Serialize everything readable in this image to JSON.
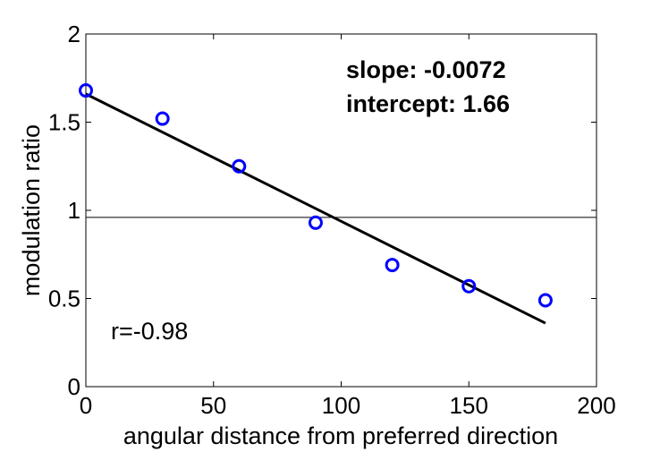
{
  "chart_data": {
    "type": "scatter",
    "title": "",
    "xlabel": "angular distance from preferred direction",
    "ylabel": "modulation ratio",
    "xlim": [
      0,
      200
    ],
    "ylim": [
      0,
      2
    ],
    "xticks": [
      0,
      50,
      100,
      150,
      200
    ],
    "yticks": [
      0,
      0.5,
      1,
      1.5,
      2
    ],
    "xtick_labels": [
      "0",
      "50",
      "100",
      "150",
      "200"
    ],
    "ytick_labels": [
      "0",
      "0.5",
      "1",
      "1.5",
      "2"
    ],
    "grid": false,
    "series": [
      {
        "type": "scatter",
        "marker": "circle",
        "color": "#0000ff",
        "x": [
          0,
          30,
          60,
          90,
          120,
          150,
          180
        ],
        "y": [
          1.68,
          1.52,
          1.25,
          0.93,
          0.69,
          0.57,
          0.49
        ]
      },
      {
        "type": "line",
        "color": "#000000",
        "x": [
          0,
          180
        ],
        "y": [
          1.66,
          0.36
        ]
      },
      {
        "type": "line",
        "color": "#000000",
        "x": [
          0,
          200
        ],
        "y": [
          0.96,
          0.96
        ]
      }
    ],
    "annotations": {
      "slope": "slope: -0.0072",
      "intercept": "intercept: 1.66",
      "r": "r=-0.98"
    }
  }
}
